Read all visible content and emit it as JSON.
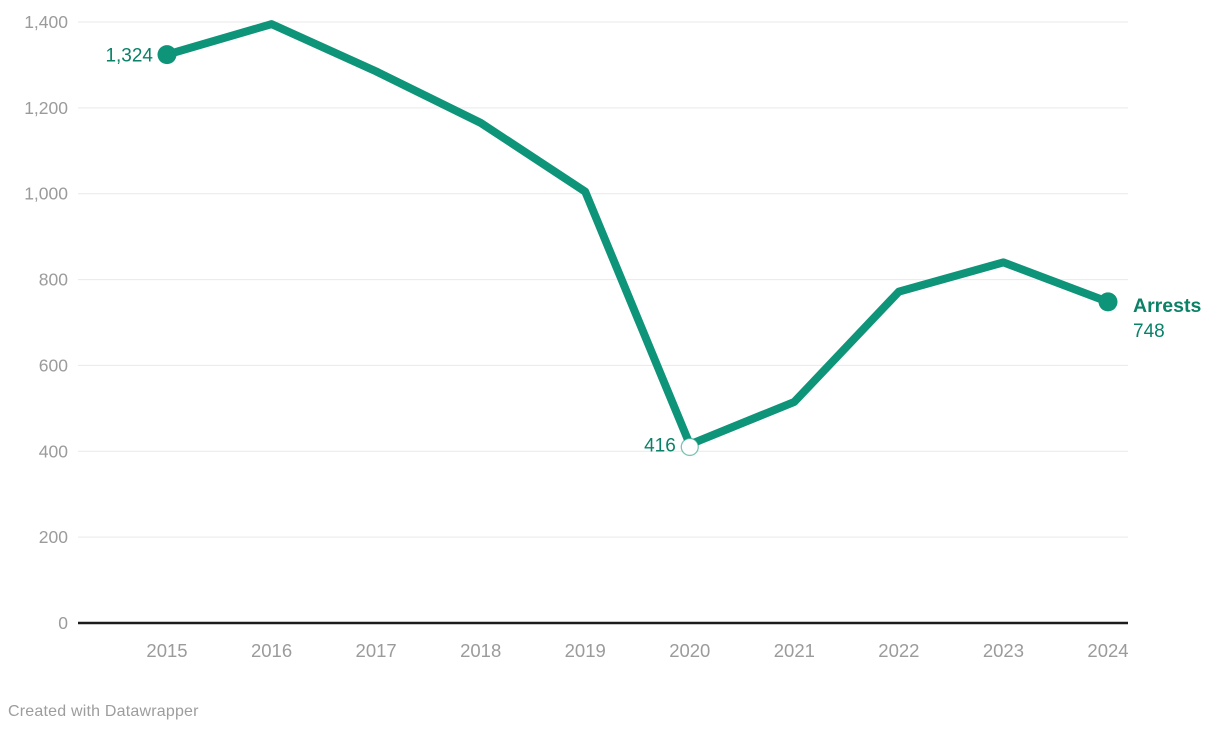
{
  "chart_data": {
    "type": "line",
    "title": "",
    "xlabel": "",
    "ylabel": "",
    "grid": "horizontal",
    "legend_position": "line-end",
    "categories": [
      "2015",
      "2016",
      "2017",
      "2018",
      "2019",
      "2020",
      "2021",
      "2022",
      "2023",
      "2024"
    ],
    "series": [
      {
        "name": "Arrests",
        "values": [
          1324,
          1395,
          1285,
          1165,
          1005,
          416,
          515,
          772,
          840,
          748
        ],
        "end_label": "Arrests",
        "end_value_label": "748"
      }
    ],
    "point_labels": [
      {
        "index": 0,
        "text": "1,324",
        "marker": "filled",
        "placement": "left"
      },
      {
        "index": 5,
        "text": "416",
        "marker": "open",
        "placement": "left"
      },
      {
        "index": 9,
        "text": "748",
        "marker": "filled",
        "placement": "end"
      }
    ],
    "y_axis": {
      "min": 0,
      "max": 1400,
      "ticks": [
        {
          "value": 0,
          "label": "0"
        },
        {
          "value": 200,
          "label": "200"
        },
        {
          "value": 400,
          "label": "400"
        },
        {
          "value": 600,
          "label": "600"
        },
        {
          "value": 800,
          "label": "800"
        },
        {
          "value": 1000,
          "label": "1,000"
        },
        {
          "value": 1200,
          "label": "1,200"
        },
        {
          "value": 1400,
          "label": "1,400"
        }
      ]
    },
    "x_axis": {
      "labels": [
        "2015",
        "2016",
        "2017",
        "2018",
        "2019",
        "2020",
        "2021",
        "2022",
        "2023",
        "2024"
      ]
    }
  },
  "colors": {
    "line": "#0e9478",
    "value_label": "#0b8168",
    "axis_text": "#9b9b9b",
    "grid": "#e9e9e9",
    "baseline": "#1c1c1c",
    "background": "#ffffff",
    "open_marker_fill": "#ffffff"
  },
  "footer": {
    "credit": "Created with Datawrapper"
  }
}
